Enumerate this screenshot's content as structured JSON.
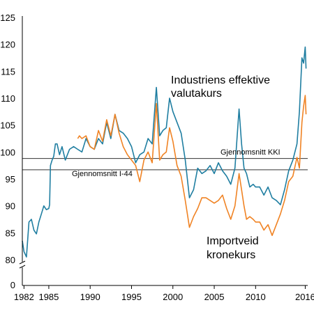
{
  "chart_data": {
    "type": "line",
    "title": "",
    "xlabel": "",
    "ylabel": "",
    "xlim": [
      1981.8,
      2016.3
    ],
    "ylim": [
      80,
      125
    ],
    "broken_y_axis": true,
    "y_axis_zero_label": "0",
    "y_ticks": [
      80,
      85,
      90,
      95,
      100,
      105,
      110,
      115,
      120,
      125
    ],
    "x_ticks": [
      1982,
      1985,
      1990,
      1995,
      2000,
      2005,
      2010,
      2016
    ],
    "reference_lines": [
      {
        "label": "Gjennomsnitt KKI",
        "value": 98.8
      },
      {
        "label": "Gjennomsnitt I-44",
        "value": 96.7
      }
    ],
    "series": [
      {
        "name": "Industriens effektive valutakurs",
        "color": "#1f7ea1",
        "x": [
          1981.8,
          1982.0,
          1982.3,
          1982.6,
          1982.9,
          1983.2,
          1983.5,
          1983.8,
          1984.1,
          1984.4,
          1984.7,
          1985.0,
          1985.1,
          1985.2,
          1985.4,
          1985.6,
          1985.8,
          1986.0,
          1986.3,
          1986.6,
          1987.0,
          1987.5,
          1988.0,
          1988.5,
          1989.0,
          1989.5,
          1990.0,
          1990.5,
          1991.0,
          1991.5,
          1992.0,
          1992.5,
          1993.0,
          1993.5,
          1994.0,
          1994.5,
          1995.0,
          1995.5,
          1996.0,
          1996.5,
          1997.0,
          1997.5,
          1998.0,
          1998.4,
          1998.8,
          1999.2,
          1999.6,
          2000.0,
          2000.5,
          2001.0,
          2001.5,
          2002.0,
          2002.5,
          2003.0,
          2003.5,
          2004.0,
          2004.5,
          2005.0,
          2005.5,
          2006.0,
          2006.5,
          2007.0,
          2007.5,
          2008.0,
          2008.3,
          2008.6,
          2008.9,
          2009.3,
          2009.7,
          2010.0,
          2010.5,
          2011.0,
          2011.5,
          2012.0,
          2012.5,
          2013.0,
          2013.5,
          2014.0,
          2014.5,
          2015.0,
          2015.3,
          2015.6,
          2015.8,
          2016.0,
          2016.1
        ],
        "y": [
          83.5,
          81.5,
          80.5,
          87,
          87.5,
          85.5,
          84.8,
          87,
          88.5,
          90,
          89.3,
          89.5,
          90.2,
          97.5,
          98.5,
          99.2,
          101.5,
          101.5,
          99.5,
          101,
          98.5,
          100.5,
          101,
          100.5,
          100,
          102.5,
          101,
          100.5,
          102.5,
          101.5,
          105.5,
          102.5,
          107,
          104,
          103.5,
          102.5,
          101,
          98,
          99.5,
          100,
          102.5,
          101.5,
          112,
          103,
          104,
          104.5,
          110,
          107.5,
          105.5,
          103.5,
          98.5,
          91.5,
          93,
          97,
          96,
          96.5,
          97.5,
          96,
          98,
          96.5,
          95.5,
          94,
          97,
          108,
          101.5,
          97,
          96,
          93.5,
          94,
          93.5,
          93.5,
          92,
          93.5,
          91.5,
          91,
          90.2,
          93,
          96.5,
          98.5,
          101.5,
          107.5,
          117.5,
          116.5,
          119.5,
          115.5
        ]
      },
      {
        "name": "Importveid kronekurs",
        "color": "#f08324",
        "x": [
          1988.5,
          1988.7,
          1989.0,
          1989.5,
          1990.0,
          1990.5,
          1991.0,
          1991.5,
          1992.0,
          1992.5,
          1993.0,
          1993.5,
          1994.0,
          1994.5,
          1995.0,
          1995.5,
          1996.0,
          1996.5,
          1997.0,
          1997.5,
          1998.0,
          1998.4,
          1998.8,
          1999.2,
          1999.6,
          2000.0,
          2000.5,
          2001.0,
          2001.5,
          2002.0,
          2002.5,
          2003.0,
          2003.5,
          2004.0,
          2004.5,
          2005.0,
          2005.5,
          2006.0,
          2006.5,
          2007.0,
          2007.5,
          2008.0,
          2008.3,
          2008.6,
          2008.9,
          2009.3,
          2009.7,
          2010.0,
          2010.5,
          2011.0,
          2011.5,
          2012.0,
          2012.5,
          2013.0,
          2013.5,
          2014.0,
          2014.5,
          2015.0,
          2015.3,
          2015.6,
          2015.8,
          2016.0,
          2016.1
        ],
        "y": [
          102.5,
          103,
          102.5,
          103,
          101,
          100.5,
          104,
          102,
          106,
          103,
          107,
          103.5,
          101,
          99.5,
          98.5,
          97.5,
          94.5,
          98.5,
          100,
          98,
          109,
          98.5,
          99.5,
          100,
          104.5,
          102,
          97.5,
          95.5,
          91,
          86,
          88,
          89.5,
          91.5,
          91.5,
          91,
          90.5,
          91,
          92,
          89.5,
          87.5,
          90,
          96,
          93,
          90,
          87.5,
          88,
          87.5,
          87,
          87,
          85.5,
          86.5,
          84.5,
          86.5,
          88.5,
          91,
          94.5,
          95.5,
          99,
          97,
          105.5,
          108.5,
          110.5,
          107
        ]
      }
    ],
    "annotations": [
      {
        "lines": [
          "Industriens effektive",
          "valutakurs"
        ]
      },
      {
        "lines": [
          "Importveid",
          "kronekurs"
        ]
      }
    ]
  }
}
